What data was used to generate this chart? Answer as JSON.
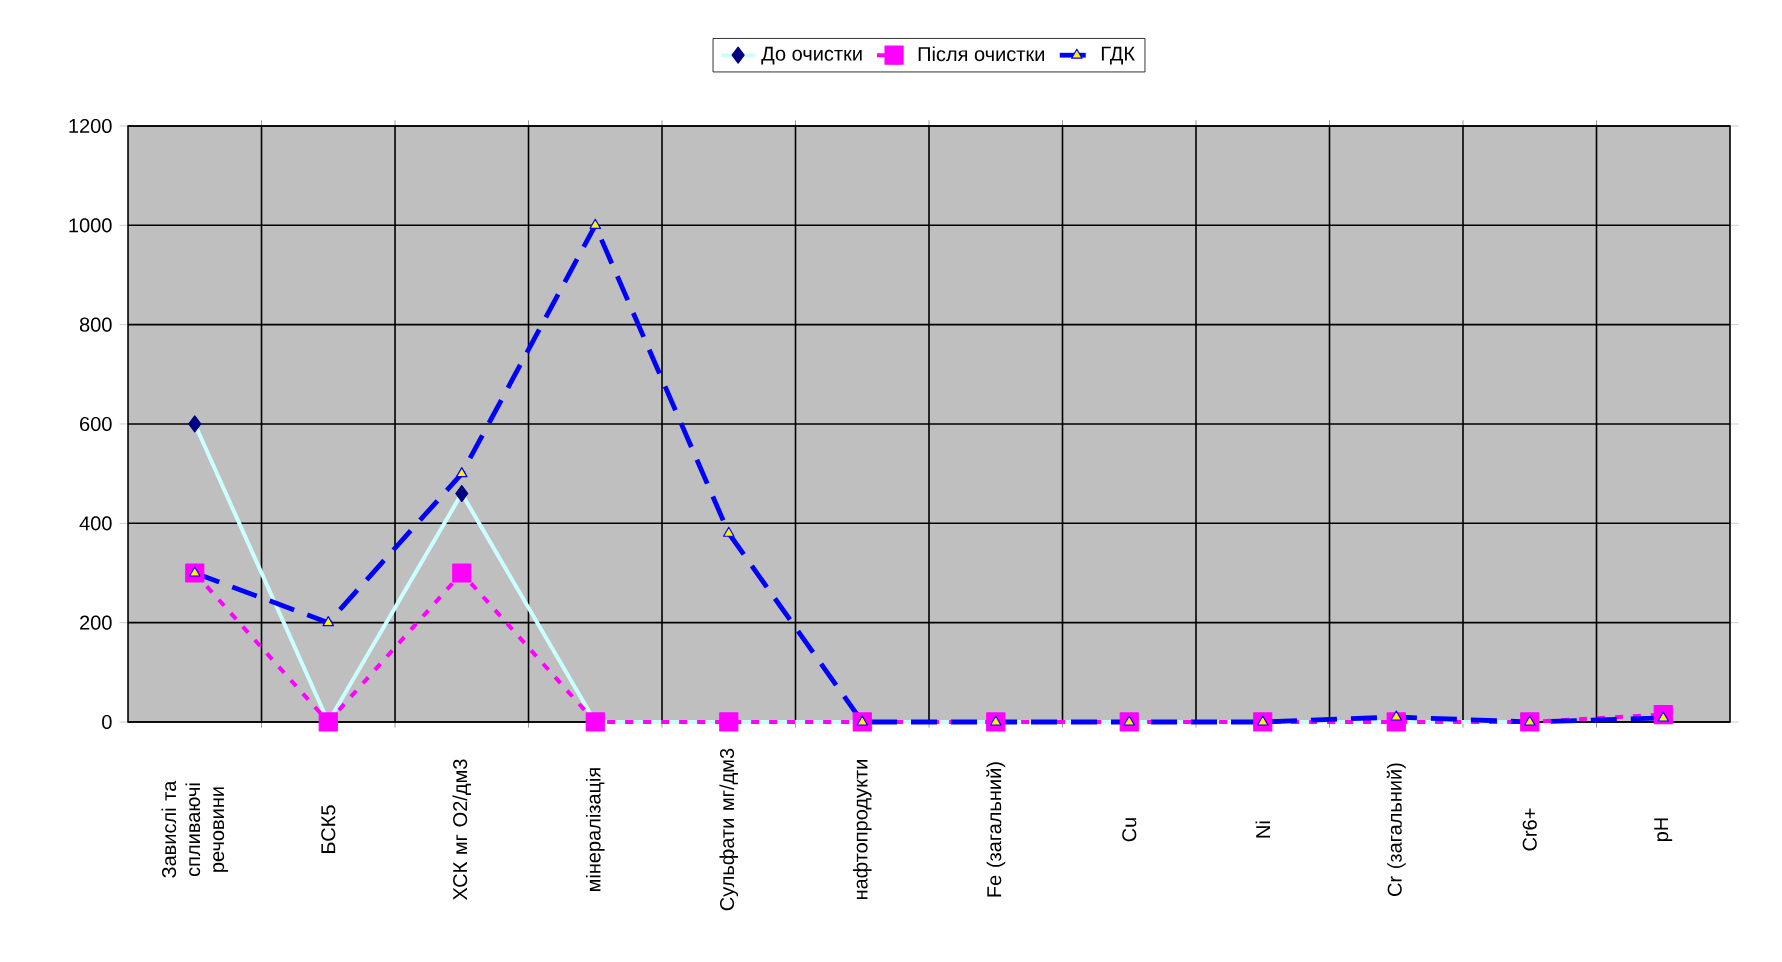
{
  "chart_data": {
    "type": "line",
    "categories": [
      "Завислі та спливаючі речовини",
      "БСК5",
      "ХСК мг О2/дм3",
      "мінералізація",
      "Сульфати мг/дм3",
      "нафтопродукти",
      "Fe (загальний)",
      "Cu",
      "Ni",
      "Cr (загальний)",
      "Cr6+",
      "pH"
    ],
    "series": [
      {
        "name": "До очистки",
        "color": "#ccffff",
        "marker": "diamond",
        "line_style": "solid",
        "values": [
          600,
          0,
          460,
          0,
          0,
          0,
          0,
          0,
          0,
          0,
          0,
          null
        ]
      },
      {
        "name": "Після очистки",
        "color": "#ff00ff",
        "marker": "square",
        "line_style": "dotted",
        "values": [
          300,
          0,
          300,
          0,
          0,
          0,
          0,
          0,
          0,
          0,
          0,
          15
        ]
      },
      {
        "name": "ГДК",
        "color": "#0000ff",
        "marker": "triangle",
        "line_style": "dashed",
        "values": [
          300,
          200,
          500,
          1000,
          380,
          0,
          0,
          0,
          0,
          10,
          0,
          8
        ]
      }
    ],
    "ylim": [
      0,
      1200
    ],
    "yticks": [
      0,
      200,
      400,
      600,
      800,
      1000,
      1200
    ],
    "grid": true,
    "legend": "top"
  }
}
